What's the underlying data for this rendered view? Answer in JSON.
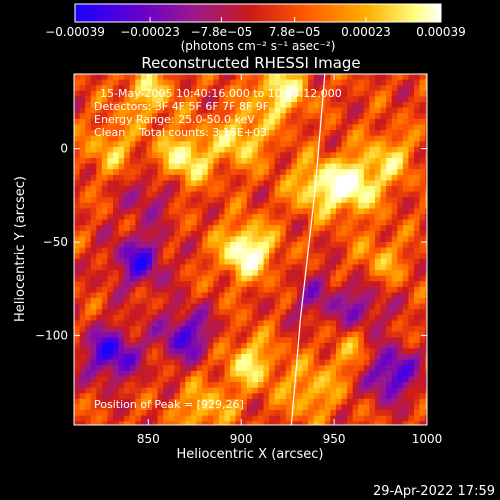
{
  "chart_data": {
    "type": "heatmap",
    "title": "Reconstructed RHESSI Image",
    "xlabel": "Heliocentric X (arcsec)",
    "ylabel": "Heliocentric Y (arcsec)",
    "xlim": [
      810,
      1000
    ],
    "ylim": [
      -148,
      40
    ],
    "x_ticks": [
      850,
      900,
      950,
      1000
    ],
    "x_tick_labels": [
      "850",
      "900",
      "950",
      "1000"
    ],
    "y_ticks": [
      0,
      -50,
      -100
    ],
    "y_tick_labels": [
      "0",
      "−50",
      "−100"
    ],
    "colorbar": {
      "range": [
        -0.00039,
        0.00039
      ],
      "tick_values": [
        -0.00039,
        -0.00023,
        -7.8e-05,
        7.8e-05,
        0.00023,
        0.00039
      ],
      "tick_labels": [
        "−0.00039",
        "−0.00023",
        "−7.8e−05",
        "7.8e−05",
        "0.00023",
        "0.00039"
      ],
      "unit_label": "(photons cm⁻² s⁻¹ asec⁻²)",
      "colormap": [
        "#1a00ff",
        "#6600cc",
        "#9b1a8a",
        "#cc1a1a",
        "#ff5a00",
        "#ffb000",
        "#ffff80",
        "#ffffff"
      ]
    },
    "annotations": [
      "15-May-2005 10:40:16.000 to 10:43:12.000",
      "Detectors: 3F 4F 5F 6F 7F 8F 9F",
      "Energy Range: 25.0-50.0 keV",
      "Clean    Total counts: 3.16E+03"
    ],
    "peak_label": "Position of Peak = [929,26]",
    "peak": [
      929,
      26
    ],
    "hot_spots": [
      {
        "x": 903,
        "y": -55,
        "value": 0.00039
      },
      {
        "x": 960,
        "y": -20,
        "value": 0.00035
      },
      {
        "x": 870,
        "y": -5,
        "value": 0.0003
      },
      {
        "x": 921,
        "y": 30,
        "value": 0.0003
      },
      {
        "x": 940,
        "y": -20,
        "value": 0.00025
      },
      {
        "x": 900,
        "y": 5,
        "value": 0.00025
      },
      {
        "x": 850,
        "y": 30,
        "value": 0.00022
      },
      {
        "x": 905,
        "y": -115,
        "value": 0.00025
      },
      {
        "x": 980,
        "y": -5,
        "value": 0.0002
      },
      {
        "x": 937,
        "y": -130,
        "value": 0.0002
      },
      {
        "x": 880,
        "y": -140,
        "value": 0.0002
      },
      {
        "x": 960,
        "y": -110,
        "value": 0.00015
      },
      {
        "x": 830,
        "y": 0,
        "value": 0.00018
      },
      {
        "x": 975,
        "y": -60,
        "value": 0.00015
      },
      {
        "x": 845,
        "y": -60,
        "value": -0.0003
      },
      {
        "x": 830,
        "y": -110,
        "value": -0.00035
      },
      {
        "x": 870,
        "y": -100,
        "value": -0.0003
      },
      {
        "x": 980,
        "y": -120,
        "value": -0.00035
      },
      {
        "x": 965,
        "y": -85,
        "value": -0.0002
      },
      {
        "x": 940,
        "y": -80,
        "value": -0.00015
      },
      {
        "x": 850,
        "y": -25,
        "value": -0.00015
      }
    ],
    "limb_curve": [
      [
        945,
        40
      ],
      [
        940,
        -20
      ],
      [
        932,
        -90
      ],
      [
        927,
        -148
      ]
    ],
    "grid": false
  },
  "footer_date": "29-Apr-2022 17:59"
}
